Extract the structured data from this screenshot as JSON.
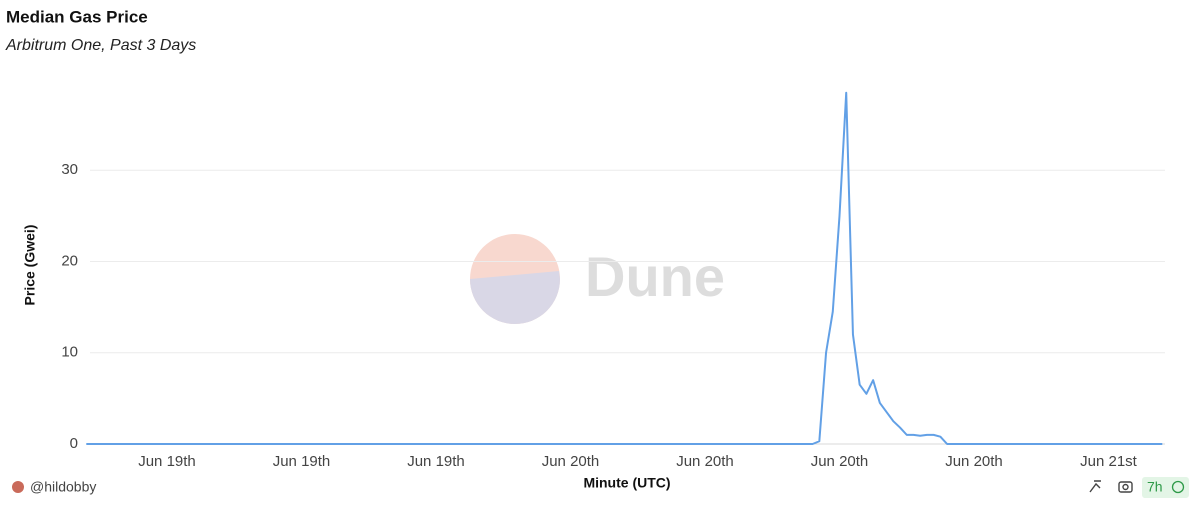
{
  "chart_data": {
    "type": "line",
    "title": "Median Gas Price",
    "subtitle": "Arbitrum One, Past 3 Days",
    "x_label": "Minute (UTC)",
    "y_label": "Price (Gwei)",
    "watermark": "Dune",
    "author": "@hildobby",
    "refresh": "7h",
    "ylim": [
      0,
      40
    ],
    "yticks": [
      0,
      10,
      20,
      30
    ],
    "grid": true,
    "categories": [
      null,
      null,
      null,
      null,
      null,
      null,
      null,
      null,
      null,
      null,
      null,
      null,
      "Jun 19th",
      null,
      null,
      null,
      null,
      null,
      null,
      null,
      null,
      null,
      null,
      null,
      null,
      null,
      null,
      null,
      null,
      null,
      null,
      null,
      "Jun 19th",
      null,
      null,
      null,
      null,
      null,
      null,
      null,
      null,
      null,
      null,
      null,
      null,
      null,
      null,
      null,
      null,
      null,
      null,
      null,
      "Jun 19th",
      null,
      null,
      null,
      null,
      null,
      null,
      null,
      null,
      null,
      null,
      null,
      null,
      null,
      null,
      null,
      null,
      null,
      null,
      null,
      "Jun 20th",
      null,
      null,
      null,
      null,
      null,
      null,
      null,
      null,
      null,
      null,
      null,
      null,
      null,
      null,
      null,
      null,
      null,
      null,
      null,
      "Jun 20th",
      null,
      null,
      null,
      null,
      null,
      null,
      null,
      null,
      null,
      null,
      null,
      null,
      null,
      null,
      null,
      null,
      null,
      null,
      null,
      "Jun 20th",
      null,
      null,
      null,
      null,
      null,
      null,
      null,
      null,
      null,
      null,
      null,
      null,
      null,
      null,
      null,
      null,
      null,
      null,
      null,
      "Jun 20th",
      null,
      null,
      null,
      null,
      null,
      null,
      null,
      null,
      null,
      null,
      null,
      null,
      null,
      null,
      null,
      null,
      null,
      null,
      null,
      "Jun 21st",
      null,
      null,
      null,
      null,
      null,
      null,
      null,
      null
    ],
    "series": [
      {
        "name": "Price (Gwei)",
        "color": "#62a0e6",
        "values": [
          0,
          0,
          0,
          0,
          0,
          0,
          0,
          0,
          0,
          0,
          0,
          0,
          0,
          0,
          0,
          0,
          0,
          0,
          0,
          0,
          0,
          0,
          0,
          0,
          0,
          0,
          0,
          0,
          0,
          0,
          0,
          0,
          0,
          0,
          0,
          0,
          0,
          0,
          0,
          0,
          0,
          0,
          0,
          0,
          0,
          0,
          0,
          0,
          0,
          0,
          0,
          0,
          0,
          0,
          0,
          0,
          0,
          0,
          0,
          0,
          0,
          0,
          0,
          0,
          0,
          0,
          0,
          0,
          0,
          0,
          0,
          0,
          0,
          0,
          0,
          0,
          0,
          0,
          0,
          0,
          0,
          0,
          0,
          0,
          0,
          0,
          0,
          0,
          0,
          0,
          0,
          0,
          0,
          0,
          0,
          0,
          0,
          0,
          0,
          0,
          0,
          0,
          0,
          0,
          0,
          0,
          0,
          0,
          0,
          0.3,
          10,
          14.5,
          25,
          38.5,
          12,
          6.5,
          5.5,
          7,
          4.5,
          3.5,
          2.5,
          1.8,
          1,
          1,
          0.9,
          1,
          1,
          0.8,
          0,
          0,
          0,
          0,
          0,
          0,
          0,
          0,
          0,
          0,
          0,
          0,
          0,
          0,
          0,
          0,
          0,
          0,
          0,
          0,
          0,
          0,
          0,
          0,
          0,
          0,
          0,
          0,
          0,
          0,
          0,
          0,
          0
        ]
      }
    ]
  }
}
